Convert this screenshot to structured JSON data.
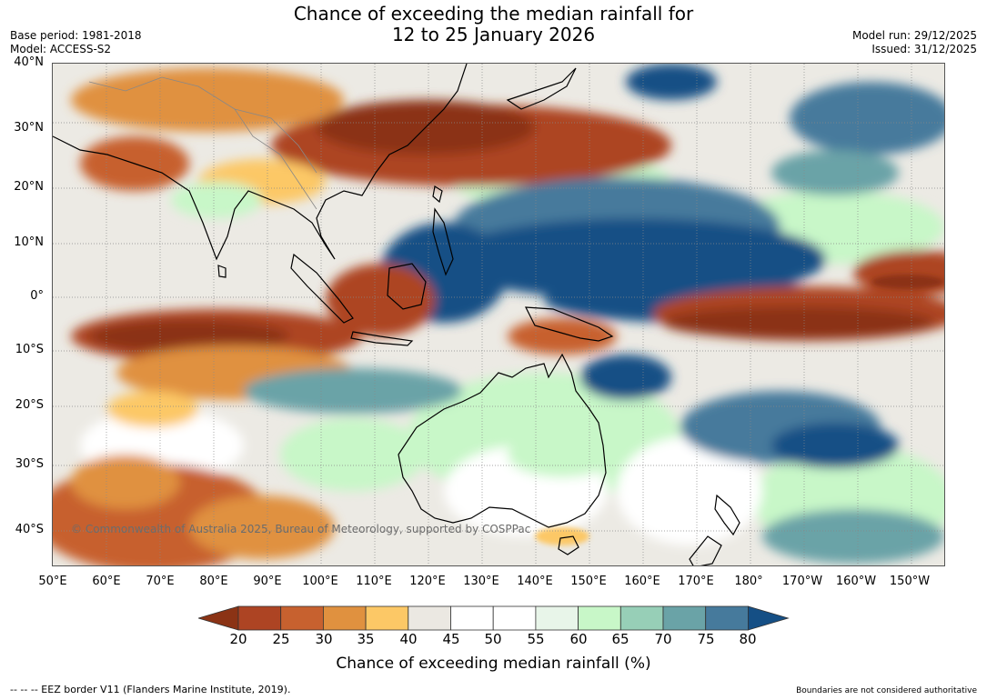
{
  "header": {
    "title_line1": "Chance of exceeding the median rainfall for",
    "title_line2": "12 to 25 January 2026",
    "base_period": "Base period: 1981-2018",
    "model": "Model: ACCESS-S2",
    "model_run": "Model run: 29/12/2025",
    "issued": "Issued: 31/12/2025"
  },
  "map": {
    "lat_labels": [
      "40°N",
      "30°N",
      "20°N",
      "10°N",
      "0°",
      "10°S",
      "20°S",
      "30°S",
      "40°S"
    ],
    "lon_labels": [
      "50°E",
      "60°E",
      "70°E",
      "80°E",
      "90°E",
      "100°E",
      "110°E",
      "120°E",
      "130°E",
      "140°E",
      "150°E",
      "160°E",
      "170°E",
      "180°",
      "170°W",
      "160°W",
      "150°W"
    ],
    "copyright": "© Commonwealth of Australia 2025, Bureau of Meteorology, supported by COSPPac"
  },
  "legend": {
    "ticks": [
      "20",
      "25",
      "30",
      "35",
      "40",
      "45",
      "50",
      "55",
      "60",
      "65",
      "70",
      "75",
      "80"
    ],
    "colors": [
      "#8b3315",
      "#ad4423",
      "#c7612f",
      "#e0913f",
      "#fcc866",
      "#ebe8e2",
      "#ffffff",
      "#ffffff",
      "#e8f5e9",
      "#c8f7c8",
      "#97cfb7",
      "#6aa3a7",
      "#467a9c",
      "#154f85"
    ],
    "title": "Chance of exceeding median rainfall (%)"
  },
  "footer": {
    "eez_note": "--  --  -- EEZ border V11 (Flanders Marine Institute, 2019).",
    "boundaries_note": "Boundaries are not considered authoritative"
  }
}
